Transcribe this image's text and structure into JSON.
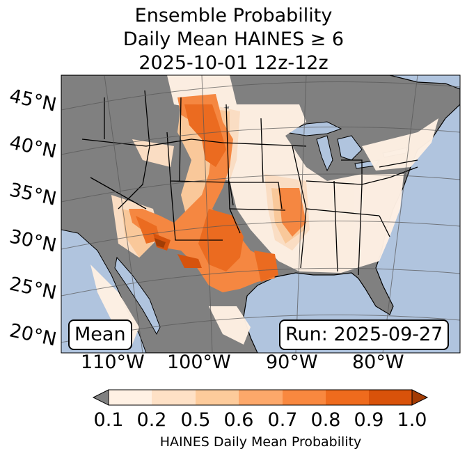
{
  "title": {
    "line1": "Ensemble Probability",
    "line2": "Daily Mean HAINES ≥ 6",
    "line3": "2025-10-01 12z-12z"
  },
  "labels": {
    "mean": "Mean",
    "run": "Run: 2025-09-27"
  },
  "lat_labels": [
    "45°N",
    "40°N",
    "35°N",
    "30°N",
    "25°N",
    "20°N"
  ],
  "lon_labels": [
    "110°W",
    "100°W",
    "90°W",
    "80°W"
  ],
  "colorbar": {
    "ticks": [
      "0.1",
      "0.2",
      "0.5",
      "0.6",
      "0.7",
      "0.8",
      "0.9",
      "1.0"
    ],
    "colors": [
      "#fff1e4",
      "#fee1c6",
      "#fdcb9b",
      "#fda86a",
      "#f9883f",
      "#ef6b1d",
      "#d9520a"
    ],
    "under_color": "#808080",
    "over_color": "#a33b03",
    "label": "HAINES Daily Mean Probability"
  },
  "map_colors": {
    "ocean": "#b0c4de",
    "land": "#808080"
  }
}
